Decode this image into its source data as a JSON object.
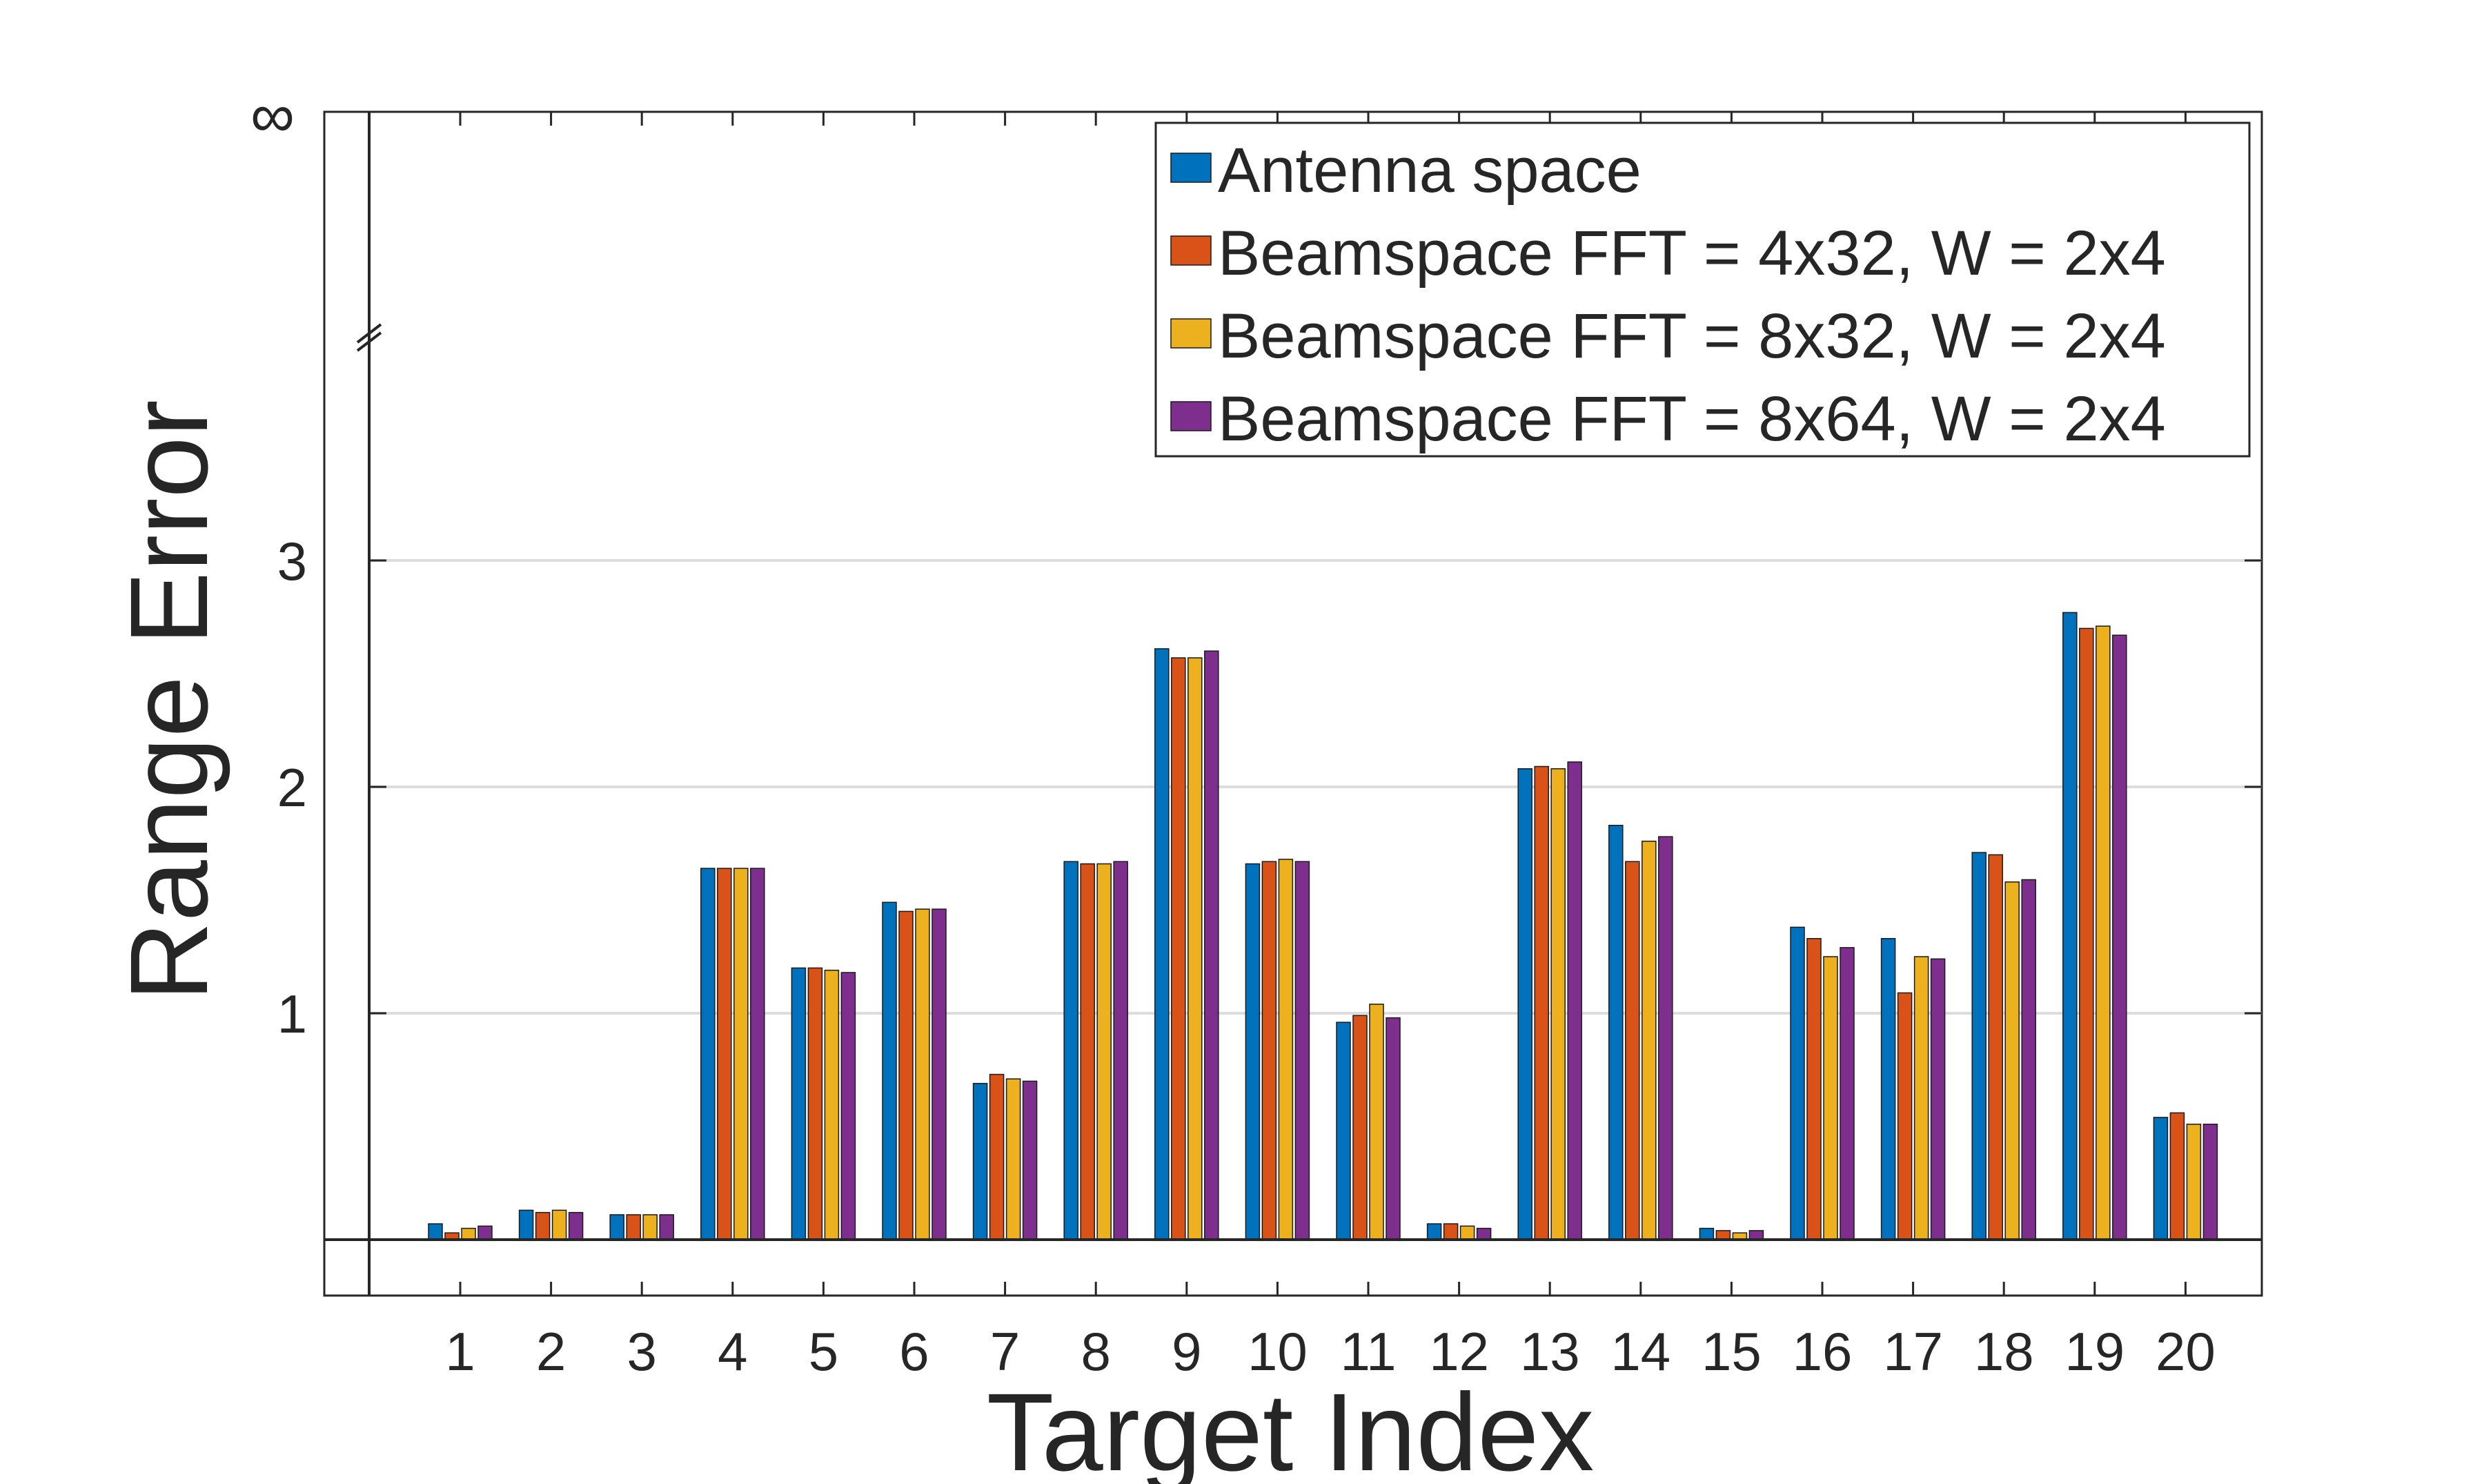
{
  "chart_data": {
    "type": "bar",
    "title": "",
    "xlabel": "Target Index",
    "ylabel": "Range Error",
    "categories": [
      "1",
      "2",
      "3",
      "4",
      "5",
      "6",
      "7",
      "8",
      "9",
      "10",
      "11",
      "12",
      "13",
      "14",
      "15",
      "16",
      "17",
      "18",
      "19",
      "20"
    ],
    "series": [
      {
        "name": "Antenna space",
        "color": "#0072BD",
        "values": [
          0.07,
          0.13,
          0.11,
          1.64,
          1.2,
          1.49,
          0.69,
          1.67,
          2.61,
          1.66,
          0.96,
          0.07,
          2.08,
          1.83,
          0.05,
          1.38,
          1.33,
          1.71,
          2.77,
          0.54
        ]
      },
      {
        "name": "Beamspace FFT = 4x32, W = 2x4",
        "color": "#D95319",
        "values": [
          0.03,
          0.12,
          0.11,
          1.64,
          1.2,
          1.45,
          0.73,
          1.66,
          2.57,
          1.67,
          0.99,
          0.07,
          2.09,
          1.67,
          0.04,
          1.33,
          1.09,
          1.7,
          2.7,
          0.56
        ]
      },
      {
        "name": "Beamspace FFT = 8x32, W = 2x4",
        "color": "#EDB120",
        "values": [
          0.05,
          0.13,
          0.11,
          1.64,
          1.19,
          1.46,
          0.71,
          1.66,
          2.57,
          1.68,
          1.04,
          0.06,
          2.08,
          1.76,
          0.03,
          1.25,
          1.25,
          1.58,
          2.71,
          0.51
        ]
      },
      {
        "name": "Beamspace FFT = 8x64, W = 2x4",
        "color": "#7E2F8E",
        "values": [
          0.06,
          0.12,
          0.11,
          1.64,
          1.18,
          1.46,
          0.7,
          1.67,
          2.6,
          1.67,
          0.98,
          0.05,
          2.11,
          1.78,
          0.04,
          1.29,
          1.24,
          1.59,
          2.67,
          0.51
        ]
      }
    ],
    "yticks": [
      "1",
      "2",
      "3"
    ],
    "ytick_values": [
      1,
      2,
      3
    ],
    "y_break_label": "∞",
    "ylim": [
      -0.25,
      5.0
    ],
    "grid": true,
    "legend_position": "top-right"
  }
}
